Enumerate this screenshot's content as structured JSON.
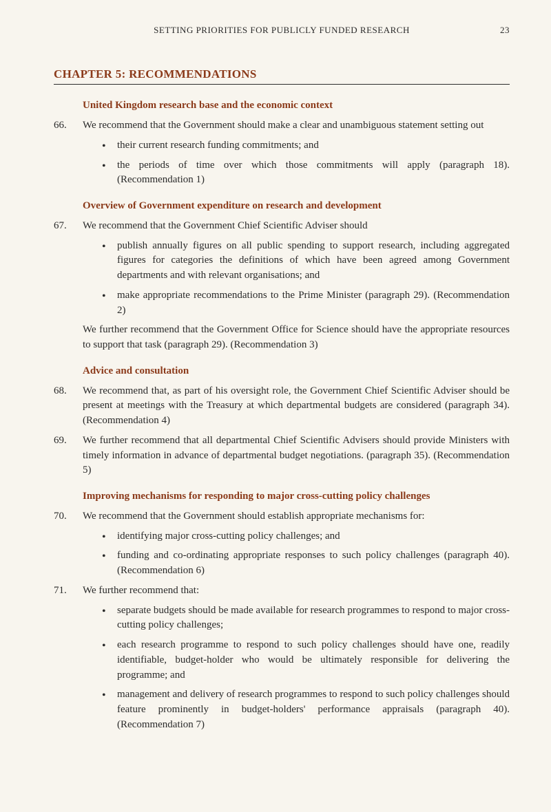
{
  "header": {
    "running_title": "SETTING PRIORITIES FOR PUBLICLY FUNDED RESEARCH",
    "page_number": "23"
  },
  "chapter_title": "CHAPTER 5: RECOMMENDATIONS",
  "sections": [
    {
      "heading": "United Kingdom research base and the economic context",
      "items": [
        {
          "number": "66.",
          "text": "We recommend that the Government should make a clear and unambiguous statement setting out",
          "bullets": [
            "their current research funding commitments; and",
            "the periods of time over which those commitments will apply (paragraph 18). (Recommendation 1)"
          ]
        }
      ]
    },
    {
      "heading": "Overview of Government expenditure on research and development",
      "items": [
        {
          "number": "67.",
          "text": "We recommend that the Government Chief Scientific Adviser should",
          "bullets": [
            "publish annually figures on all public spending to support research, including aggregated figures for categories the definitions of which have been agreed among Government departments and with relevant organisations; and",
            "make appropriate recommendations to the Prime Minister (paragraph 29). (Recommendation 2)"
          ],
          "continuation": "We further recommend that the Government Office for Science should have the appropriate resources to support that task (paragraph 29). (Recommendation 3)"
        }
      ]
    },
    {
      "heading": "Advice and consultation",
      "items": [
        {
          "number": "68.",
          "text": "We recommend that, as part of his oversight role, the Government Chief Scientific Adviser should be present at meetings with the Treasury at which departmental budgets are considered (paragraph 34). (Recommendation 4)"
        },
        {
          "number": "69.",
          "text": "We further recommend that all departmental Chief Scientific Advisers should provide Ministers with timely information in advance of departmental budget negotiations. (paragraph 35). (Recommendation 5)"
        }
      ]
    },
    {
      "heading": "Improving mechanisms for responding to major cross-cutting policy challenges",
      "items": [
        {
          "number": "70.",
          "text": "We recommend that the Government should establish appropriate mechanisms for:",
          "bullets": [
            "identifying major cross-cutting policy challenges; and",
            "funding and co-ordinating appropriate responses to such policy challenges (paragraph 40). (Recommendation 6)"
          ]
        },
        {
          "number": "71.",
          "text": "We further recommend that:",
          "bullets": [
            "separate budgets should be made available for research programmes to respond to major cross-cutting policy challenges;",
            "each research programme to respond to such policy challenges should have one, readily identifiable, budget-holder who would be ultimately responsible for delivering the programme; and",
            "management and delivery of research programmes to respond to such policy challenges should feature prominently in budget-holders' performance appraisals (paragraph 40). (Recommendation 7)"
          ]
        }
      ]
    }
  ]
}
